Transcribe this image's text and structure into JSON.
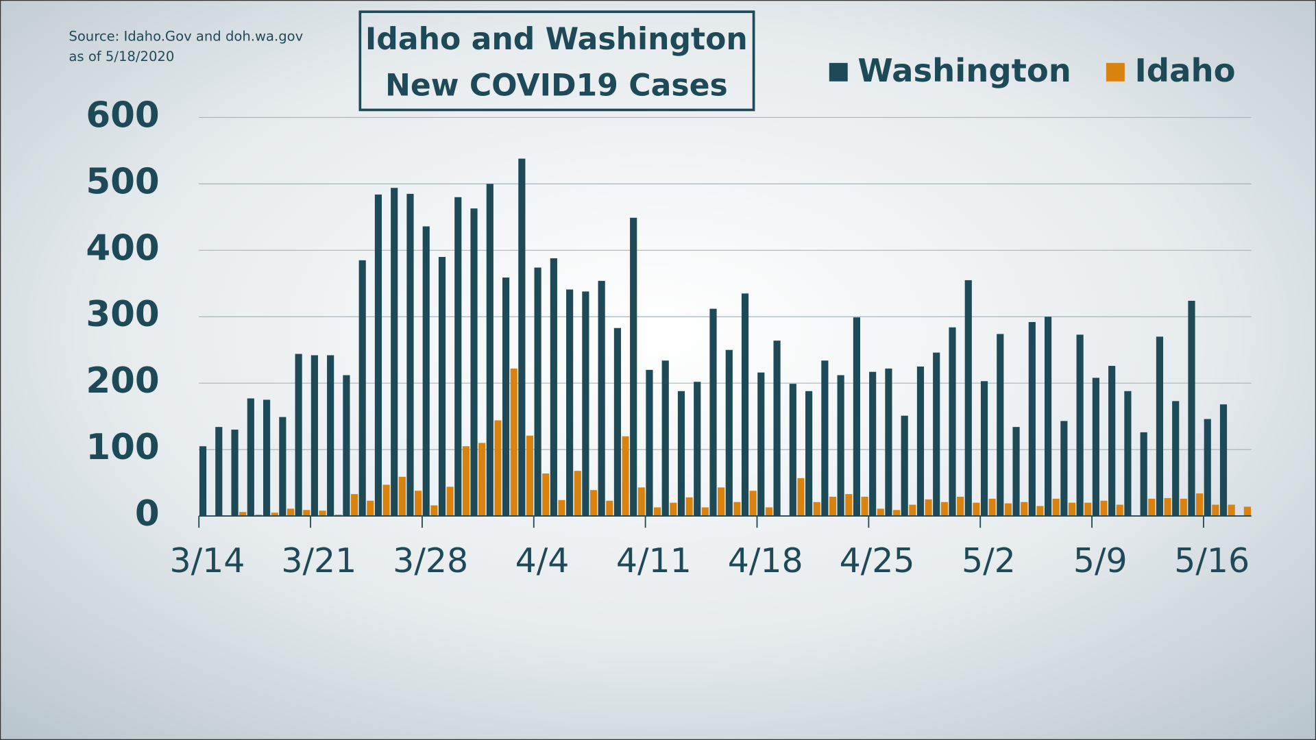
{
  "chart_data": {
    "type": "bar",
    "title": [
      "Idaho and Washington",
      "New COVID19 Cases"
    ],
    "source": [
      "Source: Idaho.Gov and doh.wa.gov",
      "as of 5/18/2020"
    ],
    "categories": [
      "3/14",
      null,
      null,
      null,
      null,
      null,
      null,
      "3/21",
      null,
      null,
      null,
      null,
      null,
      null,
      "3/28",
      null,
      null,
      null,
      null,
      null,
      null,
      "4/4",
      null,
      null,
      null,
      null,
      null,
      null,
      "4/11",
      null,
      null,
      null,
      null,
      null,
      null,
      "4/18",
      null,
      null,
      null,
      null,
      null,
      null,
      "4/25",
      null,
      null,
      null,
      null,
      null,
      null,
      "5/2",
      null,
      null,
      null,
      null,
      null,
      null,
      "5/9",
      null,
      null,
      null,
      null,
      null,
      null,
      "5/16",
      null,
      null
    ],
    "series": [
      {
        "name": "Washington",
        "color": "#1d4a56",
        "values": [
          105,
          134,
          130,
          177,
          175,
          149,
          244,
          242,
          242,
          212,
          385,
          484,
          494,
          485,
          436,
          390,
          480,
          463,
          500,
          359,
          538,
          374,
          388,
          341,
          338,
          354,
          283,
          449,
          220,
          234,
          188,
          202,
          312,
          250,
          335,
          216,
          264,
          199,
          188,
          234,
          212,
          299,
          217,
          222,
          151,
          225,
          246,
          284,
          355,
          203,
          274,
          134,
          292,
          300,
          143,
          273,
          208,
          226,
          188,
          126,
          270,
          173,
          324,
          146,
          168,
          null
        ]
      },
      {
        "name": "Idaho",
        "color": "#d9820f",
        "values": [
          0,
          0,
          6,
          2,
          5,
          11,
          9,
          8,
          2,
          33,
          23,
          47,
          59,
          38,
          16,
          44,
          105,
          110,
          144,
          222,
          121,
          64,
          24,
          68,
          39,
          23,
          120,
          43,
          13,
          20,
          28,
          13,
          43,
          21,
          38,
          13,
          0,
          57,
          21,
          29,
          33,
          29,
          11,
          9,
          17,
          25,
          21,
          29,
          20,
          26,
          19,
          21,
          15,
          26,
          20,
          20,
          23,
          17,
          0,
          26,
          27,
          26,
          34,
          17,
          17,
          14
        ]
      }
    ],
    "ylim": [
      0,
      600
    ],
    "yticks": [
      0,
      100,
      200,
      300,
      400,
      500,
      600
    ],
    "grid": true
  }
}
